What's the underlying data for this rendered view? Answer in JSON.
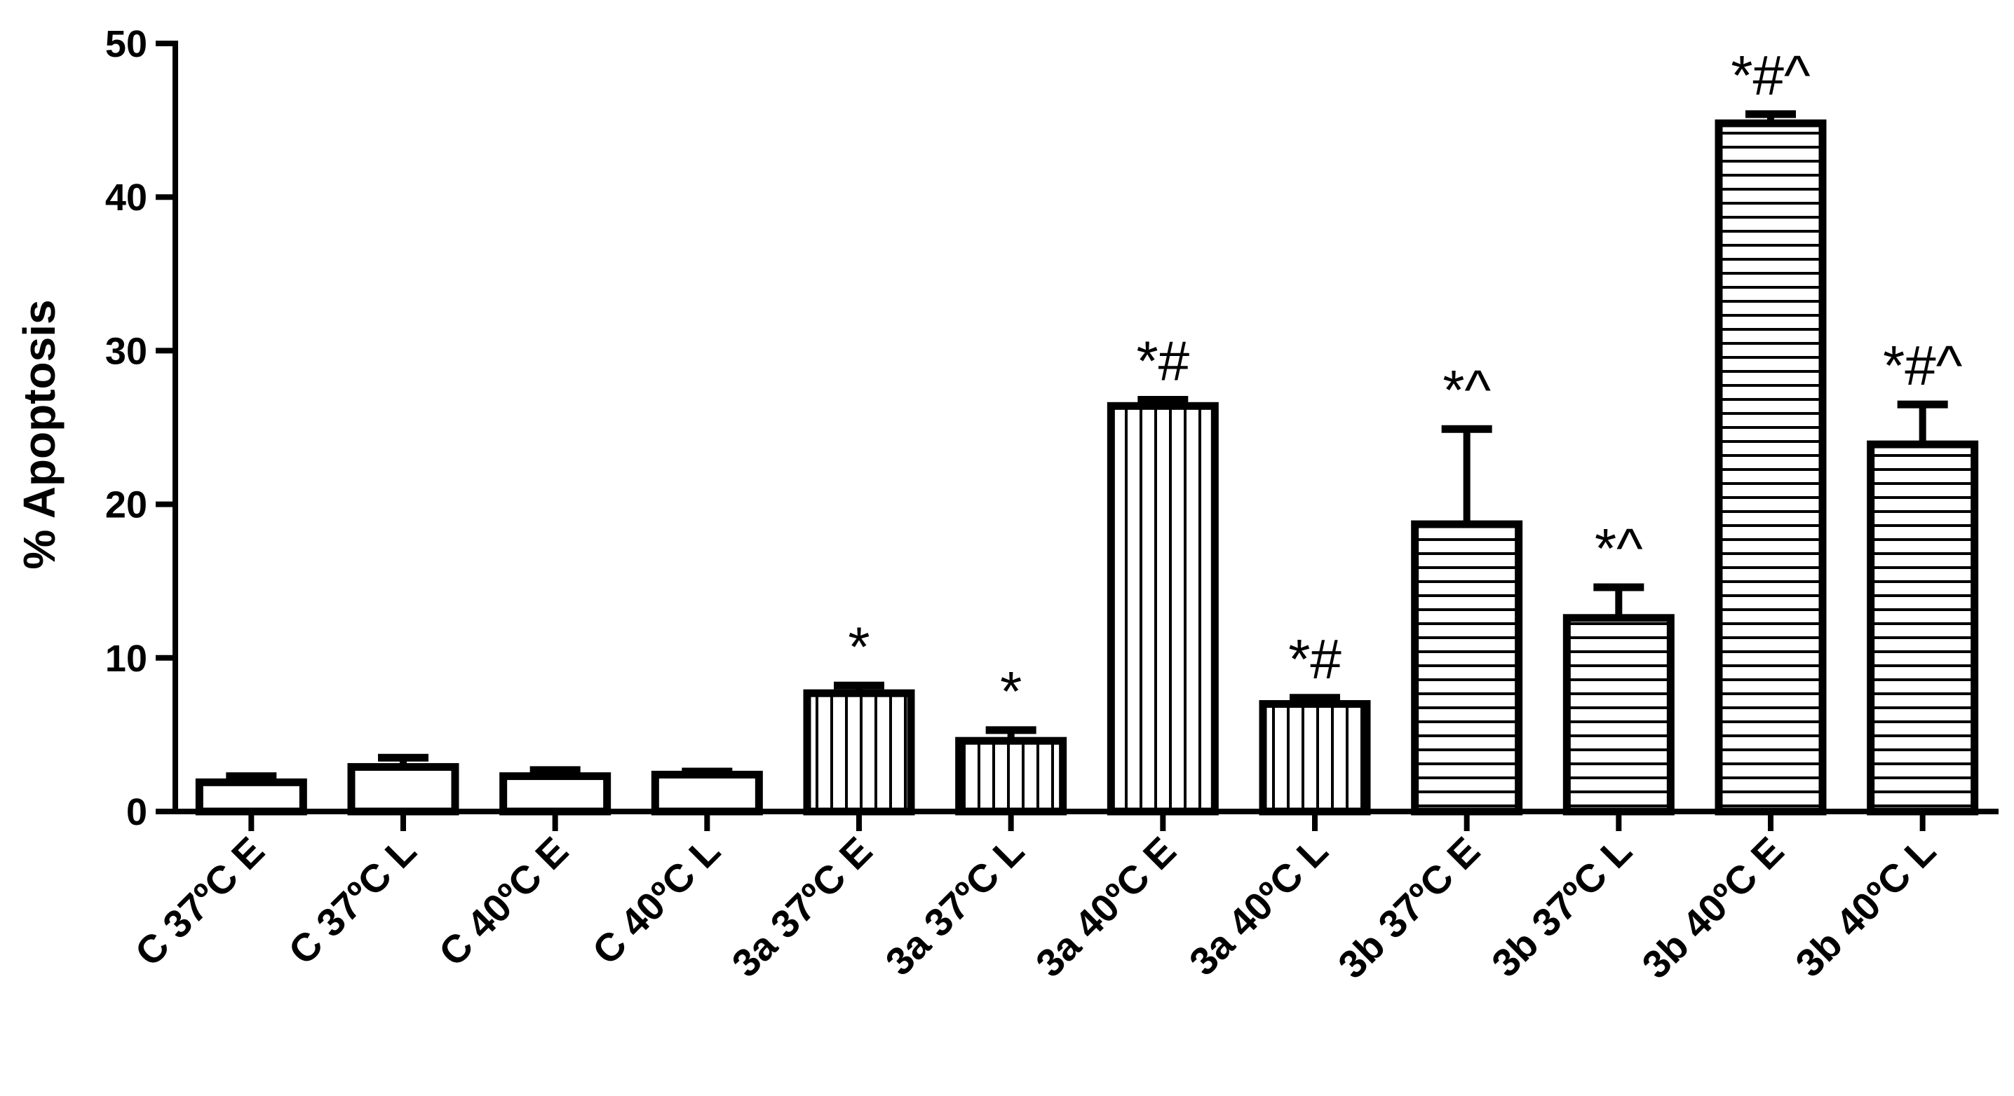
{
  "chart_data": {
    "type": "bar",
    "title": "",
    "xlabel": "",
    "ylabel": "% Apoptosis",
    "ylim": [
      0,
      50
    ],
    "yticks": [
      0,
      10,
      20,
      30,
      40,
      50
    ],
    "grid": false,
    "legend": "none",
    "categories": [
      "C 37ºC E",
      "C 37ºC L",
      "C 40ºC E",
      "C 40ºC L",
      "3a 37ºC E",
      "3a 37ºC L",
      "3a 40ºC E",
      "3a 40ºC L",
      "3b 37ºC E",
      "3b 37ºC L",
      "3b 40ºC E",
      "3b 40ºC L"
    ],
    "values": [
      1.9,
      2.9,
      2.3,
      2.4,
      7.7,
      4.6,
      26.4,
      7.0,
      18.7,
      12.6,
      44.8,
      23.9
    ],
    "errors": [
      0.4,
      0.6,
      0.4,
      0.2,
      0.5,
      0.7,
      0.4,
      0.4,
      6.2,
      2.0,
      0.6,
      2.6
    ],
    "fill_patterns": [
      "blank",
      "blank",
      "blank",
      "blank",
      "vertical",
      "vertical",
      "vertical",
      "vertical",
      "horizontal",
      "horizontal",
      "horizontal",
      "horizontal"
    ],
    "annotations": [
      "",
      "",
      "",
      "",
      "*",
      "*",
      "*#",
      "*#",
      "*^",
      "*^",
      "*#^",
      "*#^"
    ],
    "colors": {
      "stroke": "#000000",
      "fill": "#ffffff"
    }
  }
}
